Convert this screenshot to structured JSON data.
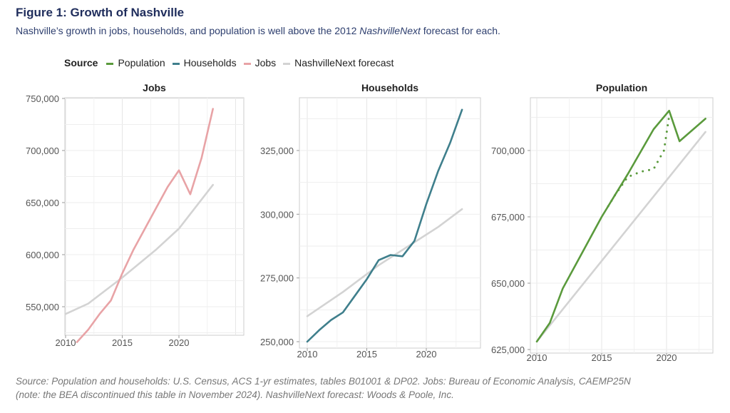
{
  "title": "Figure 1: Growth of Nashville",
  "subtitle_pre": "Nashville’s growth in jobs, households, and population is well above the 2012 ",
  "subtitle_em": "NashvilleNext",
  "subtitle_post": " forecast for each.",
  "legend": {
    "title": "Source",
    "items": [
      {
        "label": "Population",
        "color": "#5a9a3c"
      },
      {
        "label": "Households",
        "color": "#3f7f8c"
      },
      {
        "label": "Jobs",
        "color": "#e8a3a6"
      },
      {
        "label": "NashvilleNext forecast",
        "color": "#d3d3d3"
      }
    ]
  },
  "source_line1": "Source: Population and households: U.S. Census, ACS 1-yr estimates, tables B01001 & DP02. Jobs: Bureau of Economic Analysis, CAEMP25N",
  "source_line2": "(note: the BEA discontinued this table in November 2024). NashvilleNext forecast: Woods & Poole, Inc.",
  "chart_data": [
    {
      "type": "line",
      "title": "Jobs",
      "xticks": [
        2010,
        2015,
        2020
      ],
      "yticks": [
        550000,
        600000,
        650000,
        700000,
        750000
      ],
      "ytick_labels": [
        "550,000",
        "600,000",
        "650,000",
        "700,000",
        "750,000"
      ],
      "grid": true,
      "series": [
        {
          "name": "Jobs",
          "color": "#e8a3a6",
          "x": [
            2011,
            2012,
            2013,
            2014,
            2015,
            2016,
            2017,
            2018,
            2019,
            2020,
            2021,
            2022,
            2023
          ],
          "y": [
            516000,
            528000,
            543000,
            556000,
            582000,
            605000,
            625000,
            645000,
            665000,
            681000,
            658000,
            693000,
            740000
          ]
        },
        {
          "name": "NashvilleNext forecast",
          "color": "#d3d3d3",
          "x": [
            2010,
            2012,
            2015,
            2018,
            2020,
            2023
          ],
          "y": [
            543000,
            553000,
            578000,
            605000,
            625000,
            667000
          ]
        }
      ]
    },
    {
      "type": "line",
      "title": "Households",
      "xticks": [
        2010,
        2015,
        2020
      ],
      "yticks": [
        250000,
        275000,
        300000,
        325000
      ],
      "ytick_labels": [
        "250,000",
        "275,000",
        "300,000",
        "325,000"
      ],
      "grid": true,
      "series": [
        {
          "name": "Households",
          "color": "#3f7f8c",
          "x": [
            2010,
            2011,
            2012,
            2013,
            2014,
            2015,
            2016,
            2017,
            2018,
            2019,
            2020,
            2021,
            2022,
            2023
          ],
          "y": [
            250000,
            254500,
            258500,
            261500,
            268000,
            274500,
            282000,
            284000,
            283500,
            289500,
            304000,
            317000,
            328000,
            341000
          ]
        },
        {
          "name": "NashvilleNext forecast",
          "color": "#d3d3d3",
          "x": [
            2010,
            2013,
            2016,
            2019,
            2021,
            2023
          ],
          "y": [
            260000,
            269500,
            280000,
            289000,
            295000,
            302000
          ]
        }
      ]
    },
    {
      "type": "line",
      "title": "Population",
      "xticks": [
        2010,
        2015,
        2020
      ],
      "yticks": [
        625000,
        650000,
        675000,
        700000
      ],
      "ytick_labels": [
        "625,000",
        "650,000",
        "675,000",
        "700,000"
      ],
      "grid": true,
      "series": [
        {
          "name": "Population",
          "color": "#5a9a3c",
          "x": [
            2010,
            2011,
            2012,
            2013,
            2014,
            2015,
            2015.5,
            2016,
            2017,
            2018,
            2019,
            2020.2,
            2021,
            2023
          ],
          "y": [
            628000,
            635000,
            648000,
            657000,
            666000,
            675000,
            679000,
            683000,
            691000,
            699500,
            708000,
            715000,
            703500,
            712000
          ]
        },
        {
          "name": "Population (dotted)",
          "color": "#5a9a3c",
          "dotted": true,
          "x": [
            2015.5,
            2016,
            2017,
            2018,
            2019,
            2019.8,
            2020.2
          ],
          "y": [
            679000,
            683000,
            690000,
            692000,
            693000,
            700000,
            713000
          ]
        },
        {
          "name": "NashvilleNext forecast",
          "color": "#d3d3d3",
          "x": [
            2010,
            2023
          ],
          "y": [
            628000,
            707000
          ]
        }
      ]
    }
  ]
}
